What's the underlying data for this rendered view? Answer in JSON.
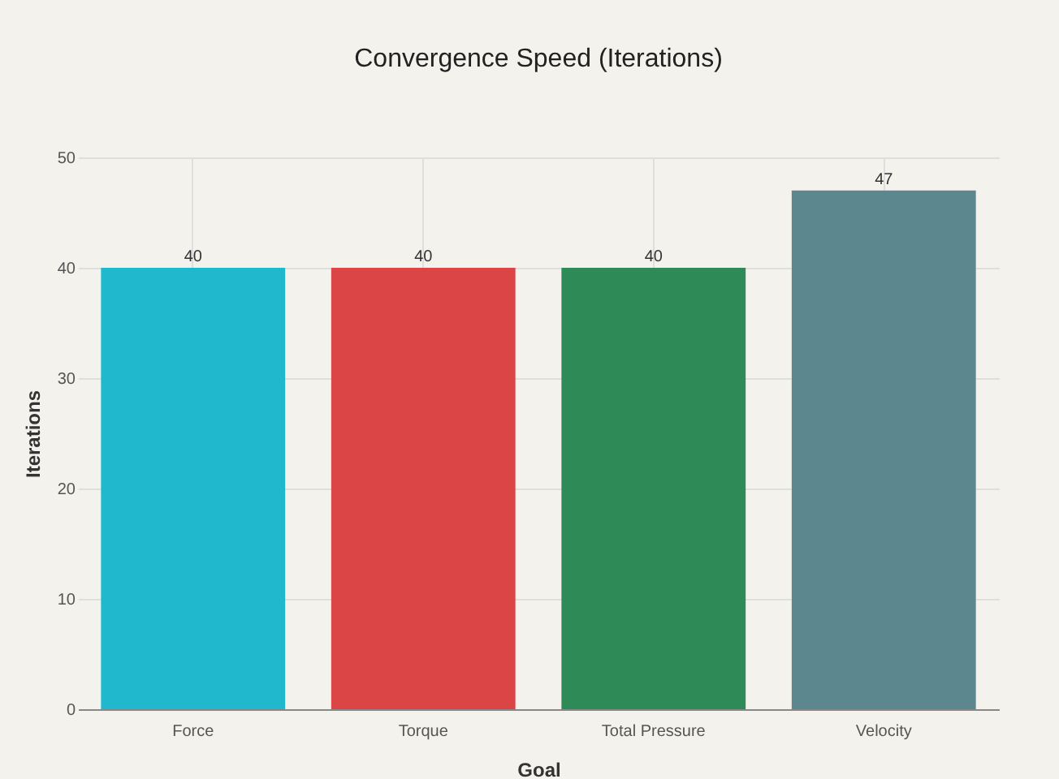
{
  "chart_data": {
    "type": "bar",
    "title": "Convergence Speed (Iterations)",
    "xlabel": "Goal",
    "ylabel": "Iterations",
    "categories": [
      "Force",
      "Torque",
      "Total Pressure",
      "Velocity"
    ],
    "values": [
      40,
      40,
      40,
      47
    ],
    "colors": [
      "#1fb8cd",
      "#db4545",
      "#2e8b57",
      "#5d878f"
    ],
    "ylim": [
      0,
      50
    ],
    "yticks": [
      0,
      10,
      20,
      30,
      40,
      50
    ],
    "grid": true,
    "data_labels": true
  }
}
